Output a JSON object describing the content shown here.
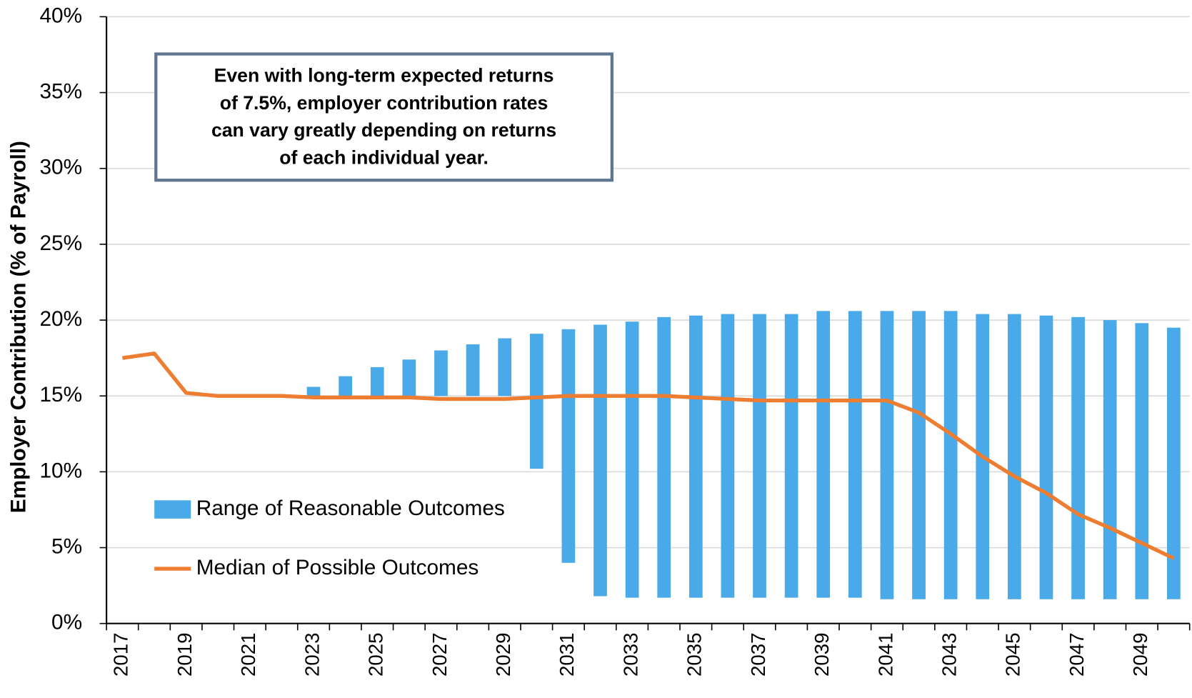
{
  "chart_data": {
    "type": "bar",
    "y_axis_label": "Employer Contribution (% of Payroll)",
    "annotation": [
      "Even with long-term expected returns",
      "of 7.5%, employer contribution rates",
      "can vary greatly depending on returns",
      "of each individual year."
    ],
    "categories": [
      "2017",
      null,
      "2019",
      null,
      "2021",
      null,
      "2023",
      null,
      "2025",
      null,
      "2027",
      null,
      "2029",
      null,
      "2031",
      null,
      "2033",
      null,
      "2035",
      null,
      "2037",
      null,
      "2039",
      null,
      "2041",
      null,
      "2043",
      null,
      "2045",
      null,
      "2047",
      null,
      "2049",
      null
    ],
    "ylim": [
      0,
      40
    ],
    "yticks": [
      {
        "value": 0,
        "label": "0%"
      },
      {
        "value": 5,
        "label": "5%"
      },
      {
        "value": 10,
        "label": "10%"
      },
      {
        "value": 15,
        "label": "15%"
      },
      {
        "value": 20,
        "label": "20%"
      },
      {
        "value": 25,
        "label": "25%"
      },
      {
        "value": 30,
        "label": "30%"
      },
      {
        "value": 35,
        "label": "35%"
      },
      {
        "value": 40,
        "label": "40%"
      }
    ],
    "grid": true,
    "series": [
      {
        "name": "Range of Reasonable Outcomes",
        "type": "range",
        "color": "#4aa9e8",
        "low": [
          null,
          null,
          null,
          null,
          null,
          null,
          15.0,
          15.0,
          15.0,
          15.0,
          15.0,
          15.0,
          15.0,
          10.2,
          4.0,
          1.8,
          1.7,
          1.7,
          1.7,
          1.7,
          1.7,
          1.7,
          1.7,
          1.7,
          1.6,
          1.6,
          1.6,
          1.6,
          1.6,
          1.6,
          1.6,
          1.6,
          1.6,
          1.6
        ],
        "high": [
          null,
          null,
          null,
          null,
          null,
          null,
          15.6,
          16.3,
          16.9,
          17.4,
          18.0,
          18.4,
          18.8,
          19.1,
          19.4,
          19.7,
          19.9,
          20.2,
          20.3,
          20.4,
          20.4,
          20.4,
          20.6,
          20.6,
          20.6,
          20.6,
          20.6,
          20.4,
          20.4,
          20.3,
          20.2,
          20.0,
          19.8,
          19.5
        ]
      },
      {
        "name": "Median of Possible Outcomes",
        "type": "line",
        "color": "#ed7d31",
        "values": [
          17.5,
          17.8,
          15.2,
          15.0,
          15.0,
          15.0,
          14.9,
          14.9,
          14.9,
          14.9,
          14.8,
          14.8,
          14.8,
          14.9,
          15.0,
          15.0,
          15.0,
          15.0,
          14.9,
          14.8,
          14.7,
          14.7,
          14.7,
          14.7,
          14.7,
          13.9,
          12.5,
          11.0,
          9.7,
          8.6,
          7.2,
          6.3,
          5.3,
          4.3
        ]
      }
    ]
  }
}
